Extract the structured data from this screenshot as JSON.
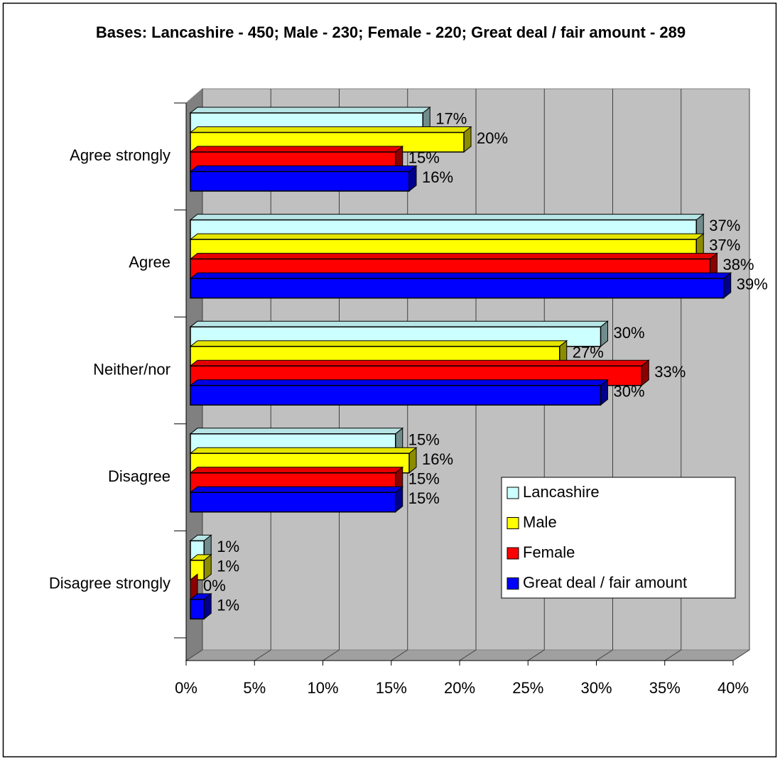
{
  "chart_data": {
    "type": "bar",
    "orientation": "horizontal",
    "title": "Bases: Lancashire - 450; Male - 230; Female - 220; Great deal / fair amount - 289",
    "categories": [
      "Agree strongly",
      "Agree",
      "Neither/nor",
      "Disagree",
      "Disagree strongly"
    ],
    "series": [
      {
        "name": "Lancashire",
        "color": "#ccffff",
        "values": [
          17,
          37,
          30,
          15,
          1
        ],
        "value_labels": [
          "17%",
          "37%",
          "30%",
          "15%",
          "1%"
        ]
      },
      {
        "name": "Male",
        "color": "#ffff00",
        "values": [
          20,
          37,
          27,
          16,
          1
        ],
        "value_labels": [
          "20%",
          "37%",
          "27%",
          "16%",
          "1%"
        ]
      },
      {
        "name": "Female",
        "color": "#ff0000",
        "values": [
          15,
          38,
          33,
          15,
          0
        ],
        "value_labels": [
          "15%",
          "38%",
          "33%",
          "15%",
          "0%"
        ]
      },
      {
        "name": "Great deal / fair amount",
        "color": "#0000ff",
        "values": [
          16,
          39,
          30,
          15,
          1
        ],
        "value_labels": [
          "16%",
          "39%",
          "30%",
          "15%",
          "1%"
        ]
      }
    ],
    "xlim": [
      0,
      40
    ],
    "xticks": [
      {
        "value": 0,
        "label": "0%"
      },
      {
        "value": 5,
        "label": "5%"
      },
      {
        "value": 10,
        "label": "10%"
      },
      {
        "value": 15,
        "label": "15%"
      },
      {
        "value": 20,
        "label": "20%"
      },
      {
        "value": 25,
        "label": "25%"
      },
      {
        "value": 30,
        "label": "30%"
      },
      {
        "value": 35,
        "label": "35%"
      },
      {
        "value": 40,
        "label": "40%"
      }
    ],
    "grid": true,
    "legend": "right"
  }
}
